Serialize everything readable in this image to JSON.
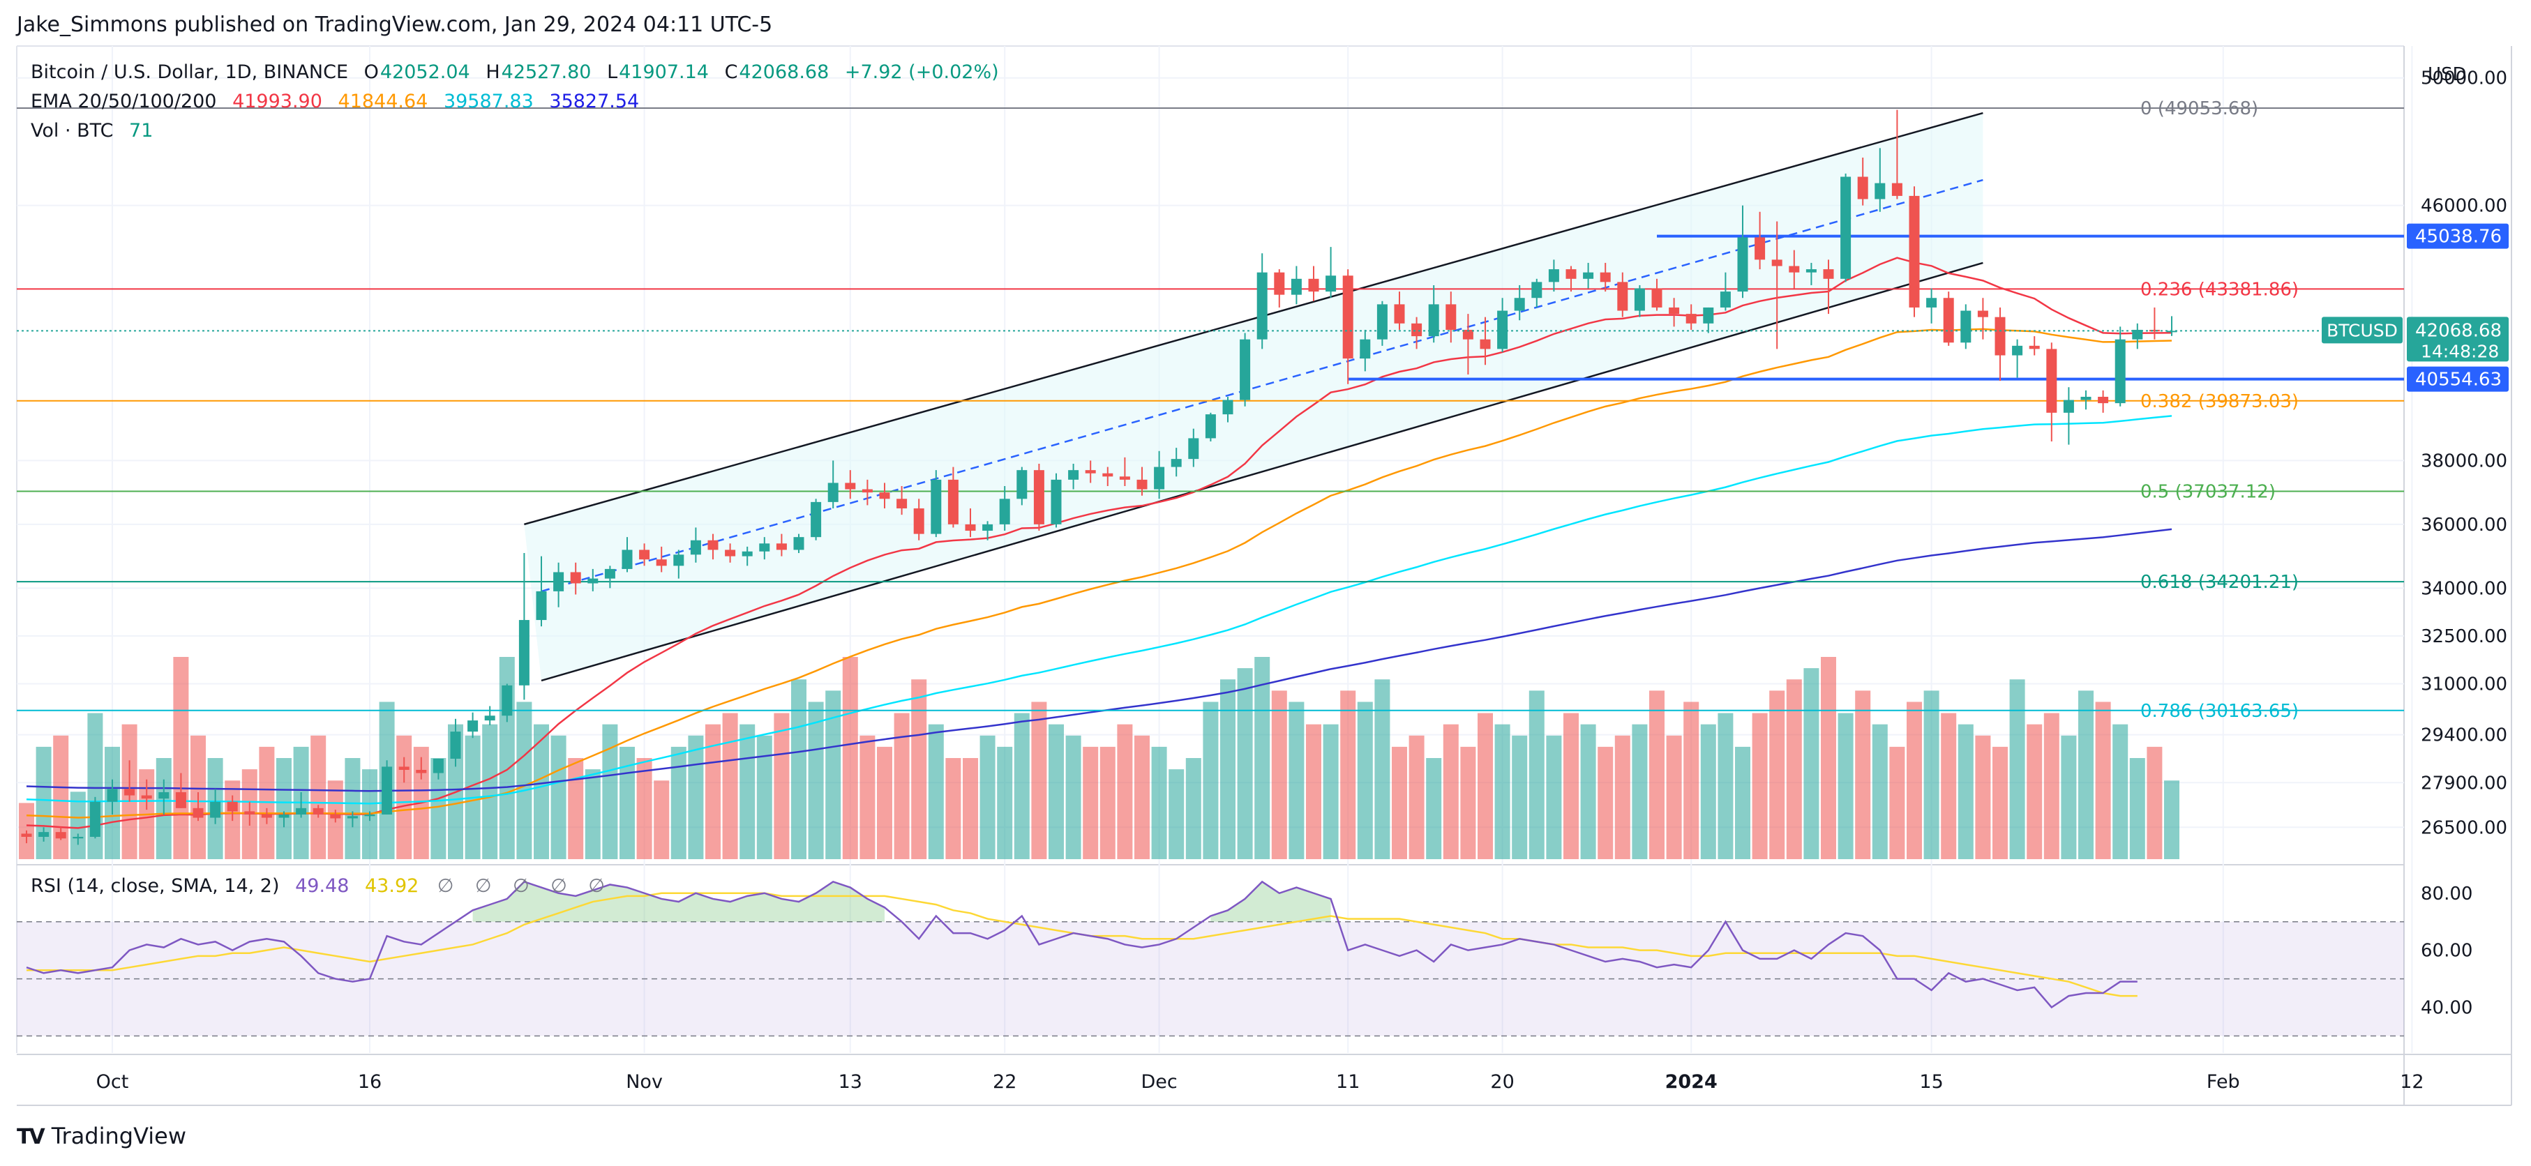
{
  "header": {
    "published": "Jake_Simmons published on TradingView.com, Jan 29, 2024 04:11 UTC-5"
  },
  "legend": {
    "symbol": "Bitcoin / U.S. Dollar, 1D, BINANCE",
    "o_label": "O",
    "o": "42052.04",
    "h_label": "H",
    "h": "42527.80",
    "l_label": "L",
    "l": "41907.14",
    "c_label": "C",
    "c": "42068.68",
    "change": "+7.92 (+0.02%)",
    "ema_label": "EMA 20/50/100/200",
    "ema20": "41993.90",
    "ema50": "41844.64",
    "ema100": "39587.83",
    "ema200": "35827.54",
    "vol_label": "Vol · BTC",
    "vol": "71",
    "rsi_label": "RSI (14, close, SMA, 14, 2)",
    "rsi": "49.48",
    "rsi_sma": "43.92",
    "rsi_na": [
      "∅",
      "∅",
      "∅",
      "∅",
      "∅"
    ]
  },
  "brand": {
    "name": "TradingView",
    "logo": "TV"
  },
  "currency": "USD",
  "colors": {
    "up": "#26a69a",
    "down": "#ef5350",
    "ema20": "#f23645",
    "ema50": "#ff9800",
    "ema100": "#00e5ff",
    "ema200": "#3333cc",
    "rsi": "#7e57c2",
    "rsi_sma": "#fdd835"
  },
  "chart_data": {
    "type": "candlestick",
    "title": "Bitcoin / U.S. Dollar, 1D, BINANCE",
    "x_ticks": [
      "Oct",
      "16",
      "Nov",
      "13",
      "22",
      "Dec",
      "11",
      "20",
      "2024",
      "15",
      "Feb",
      "12"
    ],
    "x_tick_days": [
      5,
      20,
      36,
      48,
      57,
      66,
      77,
      86,
      97,
      111,
      128,
      139
    ],
    "y_ticks": [
      "50000.00",
      "46000.00",
      "38000.00",
      "36000.00",
      "34000.00",
      "32500.00",
      "31000.00",
      "29400.00",
      "27900.00",
      "26500.00"
    ],
    "ylim": [
      25500,
      51000
    ],
    "rsi_ticks": [
      "80.00",
      "60.00",
      "40.00"
    ],
    "rsi_range": [
      24,
      88
    ],
    "rsi_bands": [
      30,
      50,
      70
    ],
    "fib_levels": [
      {
        "label": "0 (49053.68)",
        "price": 49053.68,
        "color": "#787b86"
      },
      {
        "label": "0.236 (43381.86)",
        "price": 43381.86,
        "color": "#f23645"
      },
      {
        "label": "0.382 (39873.03)",
        "price": 39873.03,
        "color": "#ff9800"
      },
      {
        "label": "0.5 (37037.12)",
        "price": 37037.12,
        "color": "#4caf50"
      },
      {
        "label": "0.618 (34201.21)",
        "price": 34201.21,
        "color": "#089981"
      },
      {
        "label": "0.786 (30163.65)",
        "price": 30163.65,
        "color": "#00bcd4"
      }
    ],
    "price_tags": [
      {
        "label": "45038.76",
        "price": 45038.76,
        "color": "#2962ff"
      },
      {
        "label": "40554.63",
        "price": 40554.63,
        "color": "#2962ff"
      }
    ],
    "current": {
      "symbol": "BTCUSD",
      "price": 42068.68,
      "label": "42068.68",
      "countdown": "14:48:28"
    },
    "horizontal_levels": [
      {
        "price": 45038.76,
        "from_day": 95,
        "to_day": 144
      },
      {
        "price": 40554.63,
        "from_day": 77,
        "to_day": 144
      }
    ],
    "channel": {
      "upper": [
        [
          29,
          36000
        ],
        [
          114,
          48900
        ]
      ],
      "lower": [
        [
          30,
          31100
        ],
        [
          114,
          44200
        ]
      ],
      "mid": [
        [
          30,
          33900
        ],
        [
          114,
          46800
        ]
      ]
    },
    "days": 124,
    "ohlc": [
      [
        26300,
        26400,
        26000,
        26200
      ],
      [
        26200,
        26500,
        26050,
        26350
      ],
      [
        26350,
        26500,
        26100,
        26150
      ],
      [
        26150,
        26300,
        25950,
        26200
      ],
      [
        26200,
        27450,
        26150,
        27300
      ],
      [
        27300,
        28000,
        26900,
        27700
      ],
      [
        27700,
        28600,
        27300,
        27500
      ],
      [
        27500,
        28000,
        27050,
        27400
      ],
      [
        27400,
        28000,
        26900,
        27600
      ],
      [
        27600,
        28200,
        27100,
        27100
      ],
      [
        27100,
        27600,
        26700,
        26800
      ],
      [
        26800,
        27700,
        26600,
        27300
      ],
      [
        27300,
        27500,
        26700,
        27000
      ],
      [
        27000,
        27300,
        26550,
        26900
      ],
      [
        26900,
        27100,
        26600,
        26800
      ],
      [
        26800,
        27000,
        26500,
        26900
      ],
      [
        26900,
        27600,
        26800,
        27100
      ],
      [
        27100,
        27200,
        26800,
        26900
      ],
      [
        26900,
        27050,
        26650,
        26780
      ],
      [
        26780,
        27000,
        26500,
        26850
      ],
      [
        26850,
        27000,
        26700,
        26900
      ],
      [
        26900,
        28600,
        26900,
        28400
      ],
      [
        28400,
        28700,
        27900,
        28300
      ],
      [
        28300,
        28700,
        28000,
        28200
      ],
      [
        28200,
        28650,
        28000,
        28650
      ],
      [
        28650,
        29900,
        28400,
        29500
      ],
      [
        29500,
        30100,
        29300,
        29850
      ],
      [
        29850,
        30300,
        29700,
        30000
      ],
      [
        30000,
        31000,
        29800,
        30950
      ],
      [
        30950,
        35100,
        30500,
        33000
      ],
      [
        33000,
        35000,
        32800,
        33900
      ],
      [
        33900,
        34800,
        33400,
        34500
      ],
      [
        34500,
        34800,
        33800,
        34150
      ],
      [
        34150,
        34600,
        33900,
        34300
      ],
      [
        34300,
        34700,
        34000,
        34600
      ],
      [
        34600,
        35600,
        34500,
        35200
      ],
      [
        35200,
        35400,
        34700,
        34900
      ],
      [
        34900,
        35300,
        34500,
        34700
      ],
      [
        34700,
        35200,
        34300,
        35050
      ],
      [
        35050,
        35900,
        34800,
        35500
      ],
      [
        35500,
        35700,
        34900,
        35200
      ],
      [
        35200,
        35400,
        34800,
        35000
      ],
      [
        35000,
        35300,
        34700,
        35150
      ],
      [
        35150,
        35600,
        34900,
        35400
      ],
      [
        35400,
        35700,
        35000,
        35200
      ],
      [
        35200,
        35700,
        35100,
        35600
      ],
      [
        35600,
        36800,
        35500,
        36700
      ],
      [
        36700,
        38000,
        36500,
        37300
      ],
      [
        37300,
        37700,
        36800,
        37100
      ],
      [
        37100,
        37400,
        36600,
        37000
      ],
      [
        37000,
        37300,
        36500,
        36800
      ],
      [
        36800,
        37200,
        36300,
        36500
      ],
      [
        36500,
        36800,
        35500,
        35700
      ],
      [
        35700,
        37700,
        35600,
        37400
      ],
      [
        37400,
        37800,
        35900,
        36000
      ],
      [
        36000,
        36500,
        35600,
        35800
      ],
      [
        35800,
        36100,
        35500,
        36000
      ],
      [
        36000,
        37200,
        35800,
        36800
      ],
      [
        36800,
        37800,
        36600,
        37700
      ],
      [
        37700,
        37900,
        35800,
        36000
      ],
      [
        36000,
        37600,
        35900,
        37400
      ],
      [
        37400,
        37900,
        37100,
        37700
      ],
      [
        37700,
        38000,
        37300,
        37600
      ],
      [
        37600,
        37800,
        37200,
        37500
      ],
      [
        37500,
        38100,
        37200,
        37400
      ],
      [
        37400,
        37800,
        36900,
        37100
      ],
      [
        37100,
        38300,
        36800,
        37800
      ],
      [
        37800,
        38400,
        37500,
        38050
      ],
      [
        38050,
        39000,
        37800,
        38700
      ],
      [
        38700,
        39500,
        38600,
        39450
      ],
      [
        39450,
        40000,
        39200,
        39900
      ],
      [
        39900,
        42000,
        39700,
        41800
      ],
      [
        41800,
        44500,
        41500,
        43900
      ],
      [
        43900,
        44000,
        42800,
        43200
      ],
      [
        43200,
        44100,
        42900,
        43700
      ],
      [
        43700,
        44100,
        43000,
        43300
      ],
      [
        43300,
        44700,
        43100,
        43800
      ],
      [
        43800,
        44000,
        40400,
        41200
      ],
      [
        41200,
        42100,
        40800,
        41800
      ],
      [
        41800,
        43000,
        41600,
        42900
      ],
      [
        42900,
        43300,
        42100,
        42300
      ],
      [
        42300,
        42500,
        41500,
        41900
      ],
      [
        41900,
        43500,
        41700,
        42900
      ],
      [
        42900,
        43300,
        41700,
        42100
      ],
      [
        42100,
        42600,
        40700,
        41800
      ],
      [
        41800,
        42500,
        41000,
        41500
      ],
      [
        41500,
        43100,
        41400,
        42700
      ],
      [
        42700,
        43500,
        42400,
        43100
      ],
      [
        43100,
        43700,
        42800,
        43600
      ],
      [
        43600,
        44300,
        43300,
        44000
      ],
      [
        44000,
        44100,
        43300,
        43700
      ],
      [
        43700,
        44200,
        43400,
        43900
      ],
      [
        43900,
        44200,
        43300,
        43600
      ],
      [
        43600,
        43900,
        42500,
        42700
      ],
      [
        42700,
        43500,
        42500,
        43400
      ],
      [
        43400,
        43700,
        42700,
        42800
      ],
      [
        42800,
        43100,
        42200,
        42600
      ],
      [
        42600,
        42900,
        42100,
        42300
      ],
      [
        42300,
        42800,
        42000,
        42800
      ],
      [
        42800,
        43900,
        42700,
        43300
      ],
      [
        43300,
        46000,
        43100,
        45000
      ],
      [
        45000,
        45800,
        44000,
        44300
      ],
      [
        44300,
        45500,
        41500,
        44100
      ],
      [
        44100,
        44600,
        43400,
        43900
      ],
      [
        43900,
        44200,
        43500,
        44000
      ],
      [
        44000,
        44300,
        42600,
        43700
      ],
      [
        43700,
        47000,
        43600,
        46900
      ],
      [
        46900,
        47500,
        46000,
        46200
      ],
      [
        46200,
        47800,
        45800,
        46700
      ],
      [
        46700,
        49000,
        46200,
        46300
      ],
      [
        46300,
        46600,
        42500,
        42800
      ],
      [
        42800,
        43400,
        42300,
        43100
      ],
      [
        43100,
        43300,
        41600,
        41700
      ],
      [
        41700,
        42900,
        41500,
        42700
      ],
      [
        42700,
        43100,
        41800,
        42500
      ],
      [
        42500,
        42800,
        40500,
        41300
      ],
      [
        41300,
        41800,
        40600,
        41600
      ],
      [
        41600,
        41900,
        41300,
        41500
      ],
      [
        41500,
        41700,
        38600,
        39500
      ],
      [
        39500,
        40300,
        38500,
        39900
      ],
      [
        39900,
        40200,
        39600,
        40000
      ],
      [
        40000,
        40200,
        39500,
        39800
      ],
      [
        39800,
        42200,
        39700,
        41800
      ],
      [
        41800,
        42300,
        41500,
        42100
      ],
      [
        42100,
        42800,
        41800,
        42050
      ],
      [
        42052,
        42528,
        41907,
        42069
      ]
    ],
    "volume": [
      5,
      10,
      11,
      6,
      13,
      10,
      12,
      8,
      9,
      18,
      11,
      9,
      7,
      8,
      10,
      9,
      10,
      11,
      7,
      9,
      8,
      14,
      11,
      10,
      9,
      12,
      11,
      12,
      18,
      14,
      12,
      11,
      9,
      8,
      12,
      10,
      9,
      7,
      10,
      11,
      12,
      13,
      12,
      11,
      13,
      16,
      14,
      15,
      18,
      11,
      10,
      13,
      16,
      12,
      9,
      9,
      11,
      10,
      13,
      14,
      12,
      11,
      10,
      10,
      12,
      11,
      10,
      8,
      9,
      14,
      16,
      17,
      18,
      15,
      14,
      12,
      12,
      15,
      14,
      16,
      10,
      11,
      9,
      12,
      10,
      13,
      12,
      11,
      15,
      11,
      13,
      12,
      10,
      11,
      12,
      15,
      11,
      14,
      12,
      13,
      10,
      13,
      15,
      16,
      17,
      18,
      13,
      15,
      12,
      10,
      14,
      15,
      13,
      12,
      11,
      10,
      16,
      12,
      13,
      11,
      15,
      14,
      12,
      9,
      10,
      7
    ],
    "rsi": [
      54,
      52,
      53,
      52,
      53,
      54,
      60,
      62,
      61,
      64,
      62,
      63,
      60,
      63,
      64,
      63,
      58,
      52,
      50,
      49,
      50,
      65,
      63,
      62,
      66,
      70,
      74,
      76,
      78,
      84,
      82,
      80,
      79,
      81,
      83,
      82,
      80,
      78,
      77,
      80,
      78,
      77,
      79,
      80,
      78,
      77,
      80,
      84,
      82,
      78,
      75,
      70,
      64,
      72,
      66,
      66,
      64,
      67,
      72,
      62,
      64,
      66,
      65,
      64,
      62,
      61,
      62,
      64,
      68,
      72,
      74,
      78,
      84,
      80,
      82,
      80,
      78,
      60,
      62,
      60,
      58,
      60,
      56,
      62,
      60,
      61,
      62,
      64,
      63,
      62,
      60,
      58,
      56,
      57,
      56,
      54,
      55,
      54,
      60,
      70,
      60,
      57,
      57,
      60,
      57,
      62,
      66,
      65,
      60,
      50,
      50,
      46,
      52,
      49,
      50,
      48,
      46,
      47,
      40,
      44,
      45,
      45,
      49,
      49
    ],
    "rsi_sma": [
      53,
      53,
      53,
      53,
      53,
      53,
      54,
      55,
      56,
      57,
      58,
      58,
      59,
      59,
      60,
      61,
      60,
      59,
      58,
      57,
      56,
      57,
      58,
      59,
      60,
      61,
      62,
      64,
      66,
      69,
      71,
      73,
      75,
      77,
      78,
      79,
      79,
      80,
      80,
      80,
      80,
      80,
      80,
      80,
      79,
      79,
      79,
      79,
      79,
      79,
      79,
      78,
      77,
      76,
      74,
      73,
      71,
      70,
      69,
      68,
      67,
      66,
      65,
      65,
      65,
      64,
      64,
      64,
      64,
      65,
      66,
      67,
      68,
      69,
      70,
      71,
      72,
      71,
      71,
      71,
      71,
      70,
      69,
      68,
      67,
      66,
      64,
      64,
      63,
      62,
      62,
      61,
      61,
      61,
      60,
      60,
      59,
      58,
      58,
      59,
      59,
      59,
      59,
      59,
      59,
      59,
      59,
      59,
      59,
      58,
      58,
      57,
      56,
      55,
      54,
      53,
      52,
      51,
      50,
      49,
      47,
      45,
      44,
      44
    ]
  }
}
